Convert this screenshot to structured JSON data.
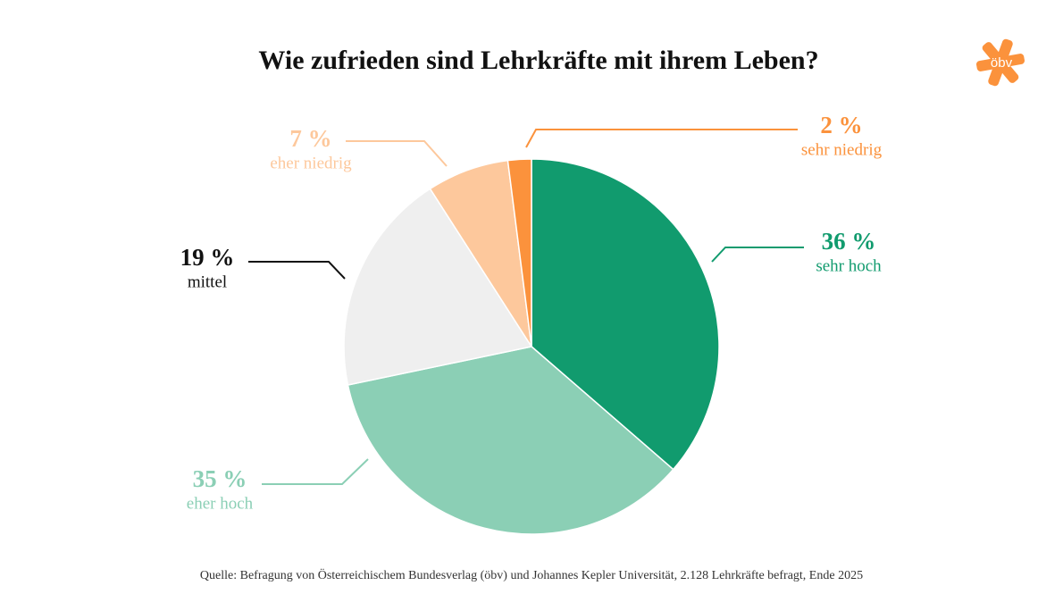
{
  "chart_data": {
    "type": "pie",
    "title": "Wie zufrieden sind Lehrkräfte mit ihrem Leben?",
    "categories": [
      "sehr hoch",
      "eher hoch",
      "mittel",
      "eher niedrig",
      "sehr niedrig"
    ],
    "values": [
      36,
      35,
      19,
      7,
      2
    ],
    "value_labels": [
      "36 %",
      "35 %",
      "19 %",
      "7 %",
      "2 %"
    ],
    "colors": [
      "#119b6e",
      "#8bcfb5",
      "#efefef",
      "#fdc89c",
      "#fb923c"
    ],
    "label_colors": [
      "#119b6e",
      "#8bcfb5",
      "#111111",
      "#fdc89c",
      "#fb923c"
    ],
    "source": "Quelle: Befragung von Österreichischem Bundesverlag (öbv) und Johannes Kepler Universität, 2.128 Lehrkräfte befragt, Ende 2025"
  },
  "logo": "öbv"
}
